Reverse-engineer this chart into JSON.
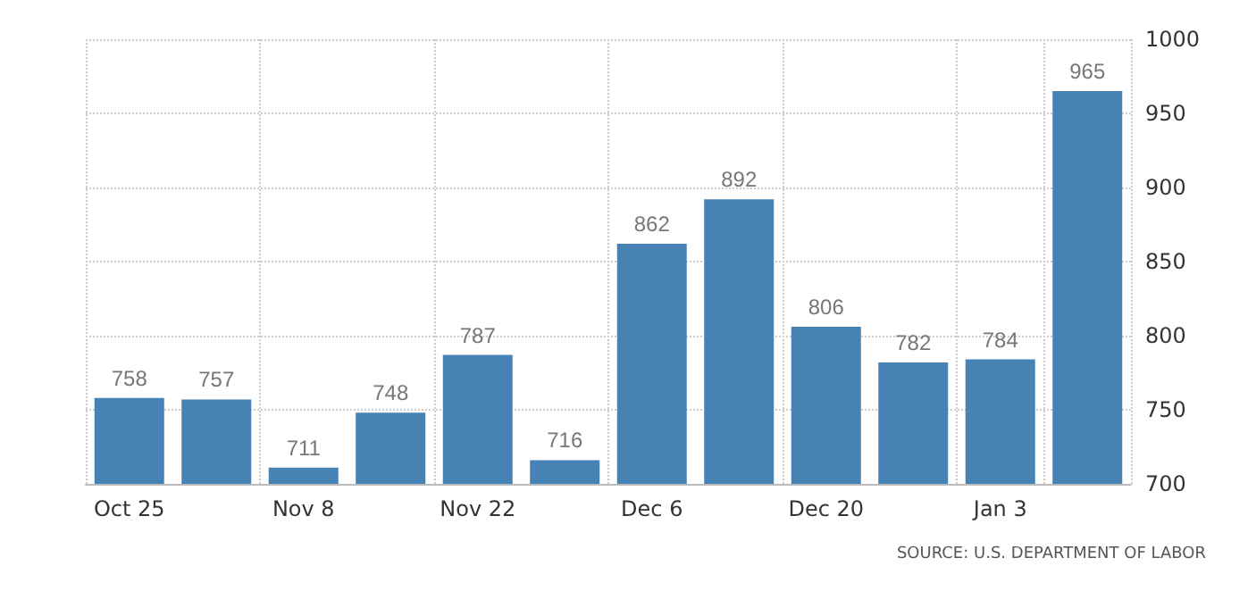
{
  "chart_data": {
    "type": "bar",
    "categories": [
      "Oct 25",
      null,
      "Nov 8",
      null,
      "Nov 22",
      null,
      "Dec 6",
      null,
      "Dec 20",
      null,
      "Jan 3",
      null
    ],
    "values": [
      758,
      757,
      711,
      748,
      787,
      716,
      862,
      892,
      806,
      782,
      784,
      965
    ],
    "color": "#4682b4",
    "ylim": [
      700,
      1000
    ],
    "yticks": [
      700,
      750,
      800,
      850,
      900,
      950,
      1000
    ],
    "grid": true,
    "data_labels": true,
    "annotations": [
      "SOURCE: U.S. DEPARTMENT OF LABOR"
    ]
  }
}
